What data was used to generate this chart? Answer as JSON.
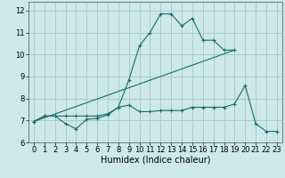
{
  "xlabel": "Humidex (Indice chaleur)",
  "xlim": [
    -0.5,
    23.5
  ],
  "ylim": [
    6,
    12.4
  ],
  "yticks": [
    6,
    7,
    8,
    9,
    10,
    11,
    12
  ],
  "xticks": [
    0,
    1,
    2,
    3,
    4,
    5,
    6,
    7,
    8,
    9,
    10,
    11,
    12,
    13,
    14,
    15,
    16,
    17,
    18,
    19,
    20,
    21,
    22,
    23
  ],
  "bg_color": "#cce8e8",
  "grid_color": "#aacccc",
  "line_color": "#1a6b6b",
  "tick_fontsize": 6,
  "label_fontsize": 7,
  "line1_x": [
    0,
    1,
    2,
    3,
    4,
    5,
    6,
    7,
    8,
    9,
    10,
    11,
    12,
    13,
    14,
    15,
    16,
    17,
    18,
    19
  ],
  "line1_y": [
    6.95,
    7.2,
    7.2,
    6.85,
    6.62,
    7.05,
    7.1,
    7.25,
    7.6,
    8.85,
    10.4,
    11.0,
    11.85,
    11.85,
    11.3,
    11.65,
    10.65,
    10.65,
    10.2,
    10.2
  ],
  "line2_x": [
    0,
    1,
    2,
    3,
    4,
    5,
    6,
    7,
    8,
    9,
    10,
    11,
    12,
    13,
    14,
    15,
    16,
    17,
    18,
    19,
    20,
    21,
    22,
    23
  ],
  "line2_y": [
    6.95,
    7.2,
    7.2,
    7.2,
    7.2,
    7.2,
    7.2,
    7.3,
    7.6,
    7.7,
    7.4,
    7.4,
    7.45,
    7.45,
    7.45,
    7.6,
    7.6,
    7.6,
    7.6,
    7.75,
    8.6,
    6.85,
    6.5,
    6.5
  ],
  "line3_x": [
    0,
    19
  ],
  "line3_y": [
    6.95,
    10.2
  ]
}
